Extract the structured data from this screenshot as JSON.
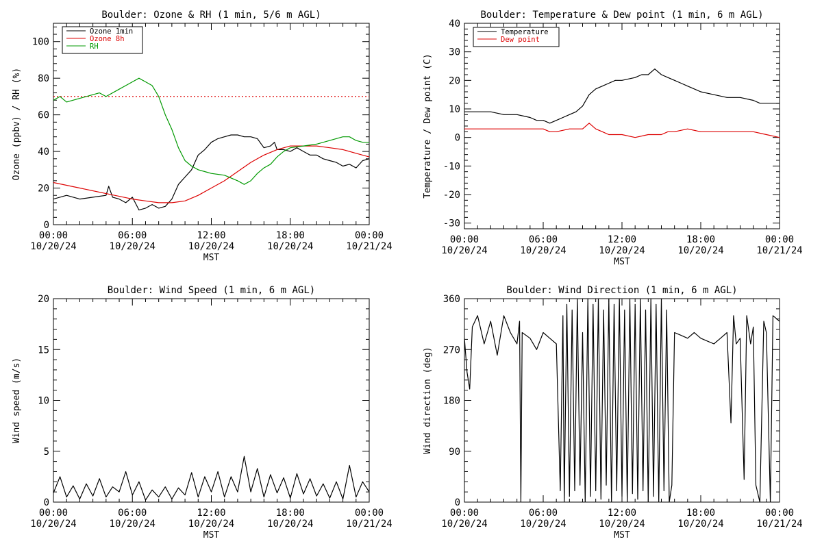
{
  "colors": {
    "black": "#000000",
    "red": "#dd0000",
    "green": "#009900"
  },
  "x_ticks": {
    "top": [
      "00:00",
      "06:00",
      "12:00",
      "18:00",
      "00:00"
    ],
    "bottom": [
      "10/20/24",
      "10/20/24",
      "10/20/24",
      "10/20/24",
      "10/21/24"
    ],
    "xlabel": "MST"
  },
  "chart_data": [
    {
      "type": "line",
      "title": "Boulder: Ozone & RH (1 min, 5/6 m AGL)",
      "xlabel": "MST",
      "ylabel": "Ozone (ppbv) / RH (%)",
      "ylim": [
        0,
        110
      ],
      "yticks": [
        0,
        20,
        40,
        60,
        80,
        100
      ],
      "x_unit": "hours since 10/20/24 00:00 MST",
      "xlim": [
        0,
        24
      ],
      "legend": "top-left",
      "reference_line": {
        "y": 70,
        "style": "dotted",
        "color": "#dd0000"
      },
      "series": [
        {
          "name": "Ozone 1min",
          "color": "#000000",
          "x": [
            0,
            1,
            2,
            3,
            4,
            4.2,
            4.5,
            5,
            5.5,
            6,
            6.5,
            7,
            7.5,
            8,
            8.5,
            9,
            9.5,
            10,
            10.5,
            11,
            11.5,
            12,
            12.5,
            13,
            13.5,
            14,
            14.5,
            15,
            15.5,
            16,
            16.5,
            16.8,
            17,
            17.5,
            18,
            18.5,
            19,
            19.5,
            20,
            20.5,
            21,
            21.5,
            22,
            22.5,
            23,
            23.5,
            24
          ],
          "y": [
            14,
            16,
            14,
            15,
            16,
            21,
            15,
            14,
            12,
            15,
            8,
            9,
            11,
            9,
            10,
            14,
            22,
            26,
            30,
            38,
            41,
            45,
            47,
            48,
            49,
            49,
            48,
            48,
            47,
            42,
            43,
            45,
            41,
            41,
            40,
            42,
            40,
            38,
            38,
            36,
            35,
            34,
            32,
            33,
            31,
            35,
            36
          ]
        },
        {
          "name": "Ozone 8h",
          "color": "#dd0000",
          "x": [
            0,
            2,
            4,
            6,
            7,
            8,
            9,
            10,
            11,
            12,
            13,
            14,
            15,
            16,
            17,
            18,
            19,
            20,
            21,
            22,
            23,
            24
          ],
          "y": [
            23,
            20,
            17,
            14,
            13,
            12,
            12,
            13,
            16,
            20,
            24,
            29,
            34,
            38,
            41,
            43,
            43,
            43,
            42,
            41,
            39,
            37
          ]
        },
        {
          "name": "RH",
          "color": "#009900",
          "x": [
            0,
            0.5,
            1,
            2,
            3,
            3.5,
            4,
            5,
            6,
            6.5,
            7,
            7.5,
            8,
            8.5,
            9,
            9.5,
            10,
            10.5,
            11,
            11.5,
            12,
            13,
            14,
            14.5,
            15,
            15.5,
            16,
            16.5,
            17,
            17.5,
            18,
            19,
            20,
            21,
            22,
            22.5,
            23,
            23.5,
            24
          ],
          "y": [
            68,
            70,
            67,
            69,
            71,
            72,
            70,
            74,
            78,
            80,
            78,
            76,
            70,
            60,
            52,
            42,
            35,
            32,
            30,
            29,
            28,
            27,
            24,
            22,
            24,
            28,
            31,
            33,
            37,
            40,
            42,
            43,
            44,
            46,
            48,
            48,
            46,
            45,
            45
          ]
        }
      ],
      "legend_entries": [
        "Ozone 1min",
        "Ozone 8h",
        "RH"
      ]
    },
    {
      "type": "line",
      "title": "Boulder: Temperature & Dew point (1 min, 6 m AGL)",
      "xlabel": "MST",
      "ylabel": "Temperature / Dew point (C)",
      "ylim": [
        -32,
        40
      ],
      "yticks": [
        -30,
        -20,
        -10,
        0,
        10,
        20,
        30,
        40
      ],
      "x_unit": "hours since 10/20/24 00:00 MST",
      "xlim": [
        0,
        24
      ],
      "legend": "top-left",
      "series": [
        {
          "name": "Temperature",
          "color": "#000000",
          "x": [
            0,
            1,
            2,
            3,
            4,
            5,
            5.5,
            6,
            6.5,
            7,
            7.5,
            8,
            8.5,
            9,
            9.5,
            10,
            10.5,
            11,
            11.5,
            12,
            13,
            13.5,
            14,
            14.5,
            15,
            15.5,
            16,
            16.5,
            17,
            17.5,
            18,
            19,
            20,
            21,
            22,
            22.5,
            23,
            23.5,
            24
          ],
          "y": [
            9,
            9,
            9,
            8,
            8,
            7,
            6,
            6,
            5,
            6,
            7,
            8,
            9,
            11,
            15,
            17,
            18,
            19,
            20,
            20,
            21,
            22,
            22,
            24,
            22,
            21,
            20,
            19,
            18,
            17,
            16,
            15,
            14,
            14,
            13,
            12,
            12,
            12,
            12
          ]
        },
        {
          "name": "Dew point",
          "color": "#dd0000",
          "x": [
            0,
            1,
            2,
            3,
            4,
            5,
            6,
            6.5,
            7,
            8,
            9,
            9.5,
            10,
            10.5,
            11,
            12,
            13,
            14,
            14.5,
            15,
            15.5,
            16,
            17,
            18,
            19,
            20,
            21,
            22,
            23,
            24
          ],
          "y": [
            3,
            3,
            3,
            3,
            3,
            3,
            3,
            2,
            2,
            3,
            3,
            5,
            3,
            2,
            1,
            1,
            0,
            1,
            1,
            1,
            2,
            2,
            3,
            2,
            2,
            2,
            2,
            2,
            1,
            0
          ]
        }
      ],
      "legend_entries": [
        "Temperature",
        "Dew point"
      ]
    },
    {
      "type": "line",
      "title": "Boulder: Wind Speed (1 min, 6 m AGL)",
      "xlabel": "MST",
      "ylabel": "Wind speed (m/s)",
      "ylim": [
        0,
        20
      ],
      "yticks": [
        0,
        5,
        10,
        15,
        20
      ],
      "x_unit": "hours since 10/20/24 00:00 MST",
      "xlim": [
        0,
        24
      ],
      "series": [
        {
          "name": "",
          "color": "#000000",
          "x": [
            0,
            0.5,
            1,
            1.5,
            2,
            2.5,
            3,
            3.5,
            4,
            4.5,
            5,
            5.5,
            6,
            6.5,
            7,
            7.5,
            8,
            8.5,
            9,
            9.5,
            10,
            10.5,
            11,
            11.5,
            12,
            12.5,
            13,
            13.5,
            14,
            14.5,
            15,
            15.5,
            16,
            16.5,
            17,
            17.5,
            18,
            18.5,
            19,
            19.5,
            20,
            20.5,
            21,
            21.5,
            22,
            22.5,
            23,
            23.5,
            24
          ],
          "y": [
            0.9,
            2.5,
            0.5,
            1.6,
            0.3,
            1.8,
            0.6,
            2.3,
            0.5,
            1.5,
            1.0,
            3.0,
            0.7,
            2.0,
            0.2,
            1.2,
            0.5,
            1.5,
            0.3,
            1.4,
            0.7,
            2.9,
            0.5,
            2.5,
            1.0,
            3.0,
            0.5,
            2.5,
            1.0,
            4.5,
            1.0,
            3.3,
            0.5,
            2.7,
            0.9,
            2.4,
            0.4,
            2.8,
            0.8,
            2.3,
            0.6,
            1.8,
            0.4,
            2.0,
            0.3,
            3.6,
            0.5,
            2.0,
            1.0
          ]
        }
      ]
    },
    {
      "type": "line",
      "title": "Boulder: Wind Direction (1 min, 6 m AGL)",
      "xlabel": "MST",
      "ylabel": "Wind direction (deg)",
      "ylim": [
        0,
        360
      ],
      "yticks": [
        0,
        90,
        180,
        270,
        360
      ],
      "x_unit": "hours since 10/20/24 00:00 MST",
      "xlim": [
        0,
        24
      ],
      "series": [
        {
          "name": "",
          "color": "#000000",
          "x": [
            0,
            0.2,
            0.4,
            0.6,
            1,
            1.5,
            2,
            2.5,
            3,
            3.5,
            4,
            4.2,
            4.3,
            4.4,
            5,
            5.5,
            6,
            6.5,
            7,
            7.3,
            7.5,
            7.6,
            7.8,
            8,
            8.2,
            8.4,
            8.6,
            8.8,
            9,
            9.2,
            9.4,
            9.6,
            9.8,
            10,
            10.2,
            10.4,
            10.6,
            10.8,
            11,
            11.2,
            11.4,
            11.6,
            11.8,
            12,
            12.2,
            12.4,
            12.6,
            12.8,
            13,
            13.2,
            13.4,
            13.6,
            13.8,
            14,
            14.2,
            14.4,
            14.6,
            14.8,
            15,
            15.2,
            15.4,
            15.6,
            15.8,
            16,
            16.5,
            17,
            17.5,
            18,
            18.5,
            19,
            19.5,
            20,
            20.3,
            20.5,
            20.7,
            21,
            21.3,
            21.5,
            21.8,
            22,
            22.2,
            22.5,
            22.8,
            23,
            23.3,
            23.5,
            24
          ],
          "y": [
            290,
            230,
            200,
            310,
            330,
            280,
            320,
            260,
            330,
            300,
            280,
            320,
            0,
            300,
            290,
            270,
            300,
            290,
            280,
            20,
            330,
            0,
            350,
            10,
            340,
            20,
            360,
            30,
            300,
            0,
            360,
            10,
            350,
            20,
            360,
            5,
            340,
            30,
            360,
            0,
            350,
            20,
            360,
            10,
            340,
            0,
            360,
            15,
            350,
            5,
            360,
            20,
            340,
            0,
            360,
            10,
            350,
            0,
            360,
            20,
            340,
            0,
            30,
            300,
            295,
            290,
            300,
            290,
            285,
            280,
            290,
            300,
            140,
            330,
            280,
            290,
            40,
            330,
            280,
            310,
            30,
            0,
            320,
            300,
            0,
            330,
            320
          ]
        }
      ]
    }
  ]
}
